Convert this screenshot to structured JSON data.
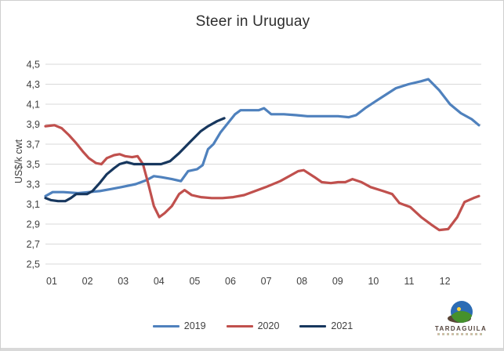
{
  "chart_data": {
    "type": "line",
    "title": "Steer in Uruguay",
    "xlabel": "",
    "ylabel": "US$/k cwt",
    "ylim": [
      2.5,
      4.5
    ],
    "ytick_step": 0.2,
    "ytick_labels": [
      "4,5",
      "4,3",
      "4,1",
      "3,9",
      "3,7",
      "3,5",
      "3,3",
      "3,1",
      "2,9",
      "2,7",
      "2,5"
    ],
    "x_categories": [
      "01",
      "02",
      "03",
      "04",
      "05",
      "06",
      "07",
      "08",
      "09",
      "10",
      "11",
      "12"
    ],
    "grid": true,
    "grid_color": "#d9d9d9",
    "axis_text_color": "#404040",
    "legend_position": "bottom-center",
    "series": [
      {
        "name": "2019",
        "color": "#4F81BD",
        "points": [
          [
            1.0,
            3.18
          ],
          [
            1.2,
            3.22
          ],
          [
            1.5,
            3.22
          ],
          [
            1.9,
            3.21
          ],
          [
            2.2,
            3.22
          ],
          [
            2.5,
            3.23
          ],
          [
            2.8,
            3.25
          ],
          [
            3.1,
            3.27
          ],
          [
            3.5,
            3.3
          ],
          [
            3.8,
            3.34
          ],
          [
            4.0,
            3.38
          ],
          [
            4.2,
            3.37
          ],
          [
            4.5,
            3.35
          ],
          [
            4.75,
            3.33
          ],
          [
            4.95,
            3.43
          ],
          [
            5.2,
            3.45
          ],
          [
            5.35,
            3.49
          ],
          [
            5.5,
            3.65
          ],
          [
            5.65,
            3.7
          ],
          [
            5.85,
            3.82
          ],
          [
            6.05,
            3.91
          ],
          [
            6.25,
            4.0
          ],
          [
            6.4,
            4.04
          ],
          [
            6.9,
            4.04
          ],
          [
            7.05,
            4.06
          ],
          [
            7.25,
            4.0
          ],
          [
            7.6,
            4.0
          ],
          [
            7.95,
            3.99
          ],
          [
            8.25,
            3.98
          ],
          [
            8.6,
            3.98
          ],
          [
            9.1,
            3.98
          ],
          [
            9.4,
            3.97
          ],
          [
            9.6,
            3.99
          ],
          [
            9.85,
            4.06
          ],
          [
            10.1,
            4.12
          ],
          [
            10.4,
            4.19
          ],
          [
            10.7,
            4.26
          ],
          [
            11.05,
            4.3
          ],
          [
            11.4,
            4.33
          ],
          [
            11.6,
            4.35
          ],
          [
            11.9,
            4.24
          ],
          [
            12.2,
            4.1
          ],
          [
            12.5,
            4.01
          ],
          [
            12.8,
            3.95
          ],
          [
            13.0,
            3.89
          ]
        ]
      },
      {
        "name": "2020",
        "color": "#C0504D",
        "points": [
          [
            1.0,
            3.88
          ],
          [
            1.25,
            3.89
          ],
          [
            1.45,
            3.86
          ],
          [
            1.65,
            3.79
          ],
          [
            1.85,
            3.71
          ],
          [
            2.05,
            3.62
          ],
          [
            2.2,
            3.56
          ],
          [
            2.4,
            3.51
          ],
          [
            2.55,
            3.5
          ],
          [
            2.7,
            3.56
          ],
          [
            2.9,
            3.59
          ],
          [
            3.05,
            3.6
          ],
          [
            3.2,
            3.58
          ],
          [
            3.4,
            3.57
          ],
          [
            3.55,
            3.58
          ],
          [
            3.7,
            3.5
          ],
          [
            3.85,
            3.3
          ],
          [
            4.0,
            3.08
          ],
          [
            4.15,
            2.97
          ],
          [
            4.3,
            3.01
          ],
          [
            4.5,
            3.08
          ],
          [
            4.7,
            3.2
          ],
          [
            4.85,
            3.24
          ],
          [
            5.05,
            3.19
          ],
          [
            5.3,
            3.17
          ],
          [
            5.6,
            3.16
          ],
          [
            5.9,
            3.16
          ],
          [
            6.2,
            3.17
          ],
          [
            6.5,
            3.19
          ],
          [
            6.8,
            3.23
          ],
          [
            7.1,
            3.27
          ],
          [
            7.5,
            3.33
          ],
          [
            7.8,
            3.39
          ],
          [
            8.0,
            3.43
          ],
          [
            8.15,
            3.44
          ],
          [
            8.45,
            3.37
          ],
          [
            8.65,
            3.32
          ],
          [
            8.9,
            3.31
          ],
          [
            9.1,
            3.32
          ],
          [
            9.3,
            3.32
          ],
          [
            9.5,
            3.35
          ],
          [
            9.75,
            3.32
          ],
          [
            10.0,
            3.27
          ],
          [
            10.35,
            3.23
          ],
          [
            10.6,
            3.2
          ],
          [
            10.8,
            3.11
          ],
          [
            11.1,
            3.07
          ],
          [
            11.4,
            2.97
          ],
          [
            11.7,
            2.89
          ],
          [
            11.9,
            2.84
          ],
          [
            12.15,
            2.85
          ],
          [
            12.4,
            2.97
          ],
          [
            12.6,
            3.12
          ],
          [
            12.85,
            3.16
          ],
          [
            13.0,
            3.18
          ]
        ]
      },
      {
        "name": "2021",
        "color": "#17375E",
        "points": [
          [
            1.0,
            3.16
          ],
          [
            1.15,
            3.14
          ],
          [
            1.35,
            3.13
          ],
          [
            1.55,
            3.13
          ],
          [
            1.7,
            3.16
          ],
          [
            1.85,
            3.2
          ],
          [
            2.0,
            3.2
          ],
          [
            2.15,
            3.2
          ],
          [
            2.3,
            3.23
          ],
          [
            2.5,
            3.31
          ],
          [
            2.7,
            3.4
          ],
          [
            2.9,
            3.46
          ],
          [
            3.05,
            3.5
          ],
          [
            3.25,
            3.52
          ],
          [
            3.45,
            3.5
          ],
          [
            3.7,
            3.5
          ],
          [
            3.95,
            3.5
          ],
          [
            4.2,
            3.5
          ],
          [
            4.45,
            3.53
          ],
          [
            4.7,
            3.61
          ],
          [
            5.0,
            3.72
          ],
          [
            5.3,
            3.83
          ],
          [
            5.5,
            3.88
          ],
          [
            5.75,
            3.93
          ],
          [
            5.95,
            3.96
          ]
        ]
      }
    ]
  },
  "logo": {
    "text": "TARDAGUILA"
  }
}
